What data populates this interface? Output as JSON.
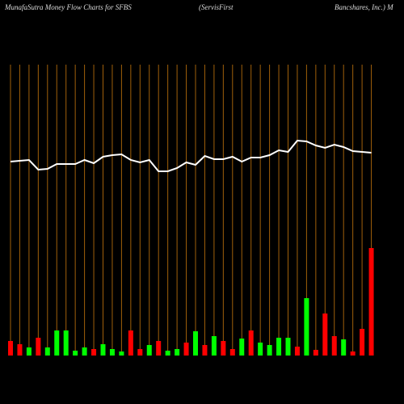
{
  "chart_data": {
    "type": "bar_line",
    "title": [
      "MunafaSutra  Money Flow  Charts for SFBS",
      "(ServisFirst",
      "Bancshares,  Inc.) M"
    ],
    "ylim": [
      0,
      360
    ],
    "grid_color": "#a0600a",
    "line": {
      "color": "#ffffff",
      "values": [
        240,
        241,
        242,
        230,
        231,
        237,
        237,
        237,
        242,
        238,
        246,
        248,
        249,
        242,
        239,
        242,
        228,
        228,
        232,
        239,
        236,
        247,
        243,
        243,
        246,
        240,
        245,
        245,
        248,
        254,
        252,
        266,
        265,
        260,
        257,
        261,
        258,
        253,
        252,
        251
      ]
    },
    "bars": {
      "values": [
        18,
        14,
        10,
        22,
        10,
        31,
        31,
        6,
        10,
        8,
        14,
        8,
        5,
        31,
        8,
        13,
        18,
        6,
        8,
        16,
        30,
        13,
        24,
        18,
        8,
        21,
        31,
        16,
        13,
        22,
        22,
        11,
        71,
        7,
        52,
        24,
        20,
        5,
        33,
        133
      ],
      "colors": [
        "#ff0000",
        "#ff0000",
        "#00ff00",
        "#ff0000",
        "#00ff00",
        "#00ff00",
        "#00ff00",
        "#00ff00",
        "#00ff00",
        "#ff0000",
        "#00ff00",
        "#00ff00",
        "#00ff00",
        "#ff0000",
        "#ff0000",
        "#00ff00",
        "#ff0000",
        "#00ff00",
        "#00ff00",
        "#ff0000",
        "#00ff00",
        "#ff0000",
        "#00ff00",
        "#ff0000",
        "#ff0000",
        "#00ff00",
        "#ff0000",
        "#00ff00",
        "#00ff00",
        "#00ff00",
        "#00ff00",
        "#ff0000",
        "#00ff00",
        "#ff0000",
        "#ff0000",
        "#ff0000",
        "#00ff00",
        "#ff0000",
        "#ff0000",
        "#ff0000"
      ]
    }
  }
}
